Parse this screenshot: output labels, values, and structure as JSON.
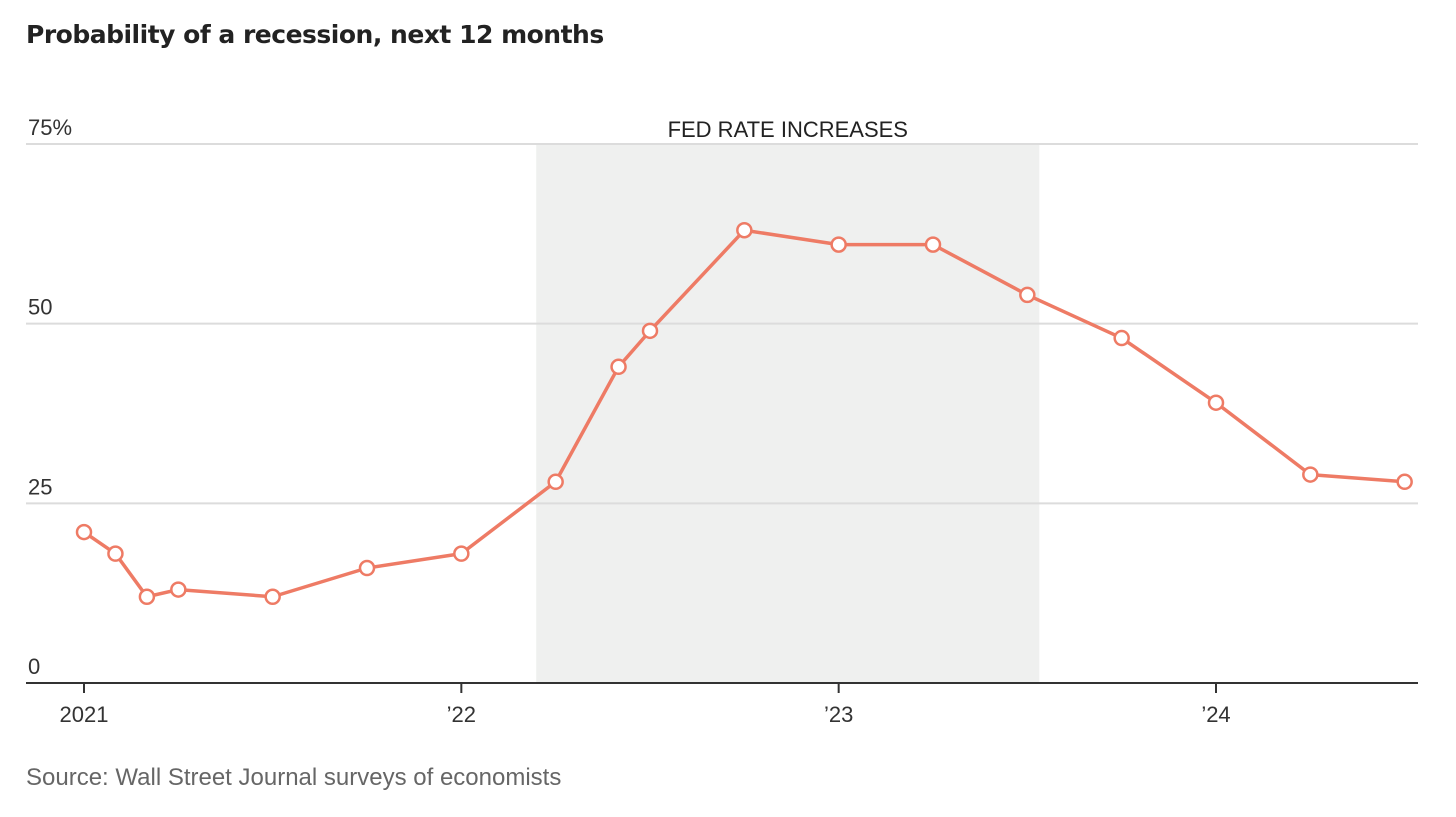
{
  "title": "Probability of a recession, next 12 months",
  "source": "Source: Wall Street Journal surveys of economists",
  "colors": {
    "line": "#ee7b65",
    "shade": "#eff0ef",
    "grid": "#dcdcdc",
    "axis": "#333333"
  },
  "chart_data": {
    "type": "line",
    "title": "Probability of a recession, next 12 months",
    "xlabel": "",
    "ylabel": "",
    "ylim": [
      0,
      75
    ],
    "yticks": [
      0,
      25,
      50,
      75
    ],
    "ytick_labels": [
      "0",
      "25",
      "50",
      "75%"
    ],
    "xlim": [
      "2020-11",
      "2024-08"
    ],
    "xticks": [
      "2021-01",
      "2022-01",
      "2023-01",
      "2024-01"
    ],
    "xtick_labels": [
      "2021",
      "’22",
      "’23",
      "’24"
    ],
    "grid": true,
    "shaded_region": {
      "label": "FED RATE INCREASES",
      "start": "2022-03",
      "end": "2023-07"
    },
    "series": [
      {
        "points": [
          {
            "x": "2021-01",
            "y": 21
          },
          {
            "x": "2021-02",
            "y": 18
          },
          {
            "x": "2021-03",
            "y": 12
          },
          {
            "x": "2021-04",
            "y": 13
          },
          {
            "x": "2021-07",
            "y": 12
          },
          {
            "x": "2021-10",
            "y": 16
          },
          {
            "x": "2022-01",
            "y": 18
          },
          {
            "x": "2022-04",
            "y": 28
          },
          {
            "x": "2022-06",
            "y": 44
          },
          {
            "x": "2022-07",
            "y": 49
          },
          {
            "x": "2022-10",
            "y": 63
          },
          {
            "x": "2023-01",
            "y": 61
          },
          {
            "x": "2023-04",
            "y": 61
          },
          {
            "x": "2023-07",
            "y": 54
          },
          {
            "x": "2023-10",
            "y": 48
          },
          {
            "x": "2024-01",
            "y": 39
          },
          {
            "x": "2024-04",
            "y": 29
          },
          {
            "x": "2024-07",
            "y": 28
          }
        ]
      }
    ]
  }
}
